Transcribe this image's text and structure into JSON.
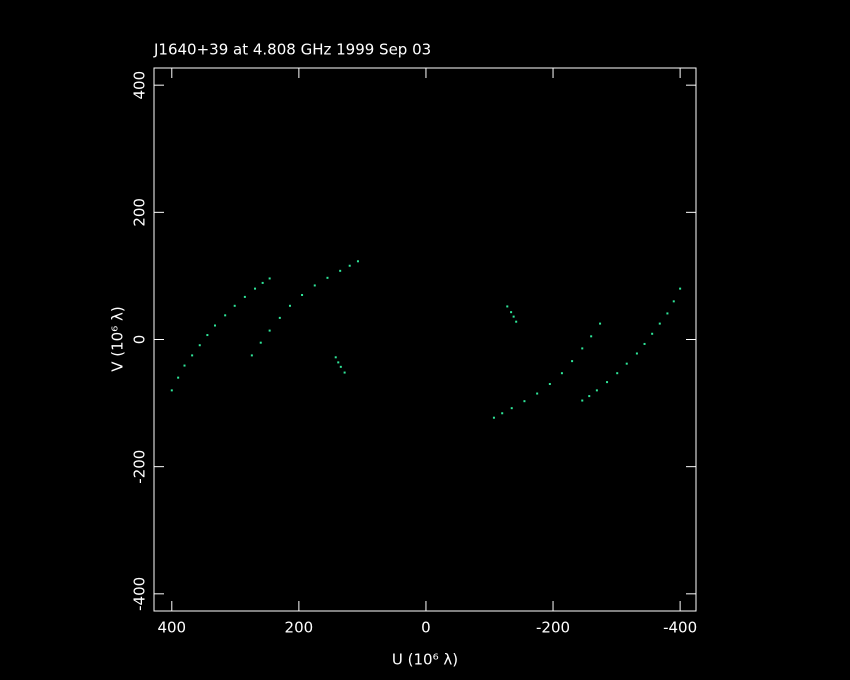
{
  "chart_data": {
    "type": "scatter",
    "title": "J1640+39 at 4.808 GHz 1999 Sep 03",
    "x_label": "U (10⁶ λ)",
    "y_label": "V (10⁶ λ)",
    "color": "#2fe89a",
    "xlim": [
      428,
      -425
    ],
    "ylim": [
      -427,
      427
    ],
    "xticks": [
      400,
      200,
      0,
      -200,
      -400
    ],
    "yticks": [
      -400,
      -200,
      0,
      200,
      400
    ],
    "x": [
      400,
      390,
      380,
      368,
      356,
      344,
      332,
      316,
      301,
      285,
      269,
      257,
      246,
      274,
      260,
      246,
      230,
      214,
      195,
      175,
      155,
      135,
      120,
      107,
      142,
      138,
      134,
      128,
      -400,
      -390,
      -380,
      -368,
      -356,
      -344,
      -332,
      -316,
      -301,
      -285,
      -269,
      -257,
      -246,
      -274,
      -260,
      -246,
      -230,
      -214,
      -195,
      -175,
      -155,
      -135,
      -120,
      -107,
      -142,
      -138,
      -134,
      -128
    ],
    "values": [
      -80,
      -60,
      -41,
      -25,
      -9,
      7,
      22,
      38,
      53,
      67,
      80,
      89,
      96,
      -25,
      -5,
      14,
      34,
      53,
      70,
      85,
      97,
      108,
      116,
      123,
      -28,
      -36,
      -43,
      -52,
      80,
      60,
      41,
      25,
      9,
      -7,
      -22,
      -38,
      -53,
      -67,
      -80,
      -89,
      -96,
      25,
      5,
      -14,
      -34,
      -53,
      -70,
      -85,
      -97,
      -108,
      -116,
      -123,
      28,
      36,
      43,
      52
    ]
  }
}
